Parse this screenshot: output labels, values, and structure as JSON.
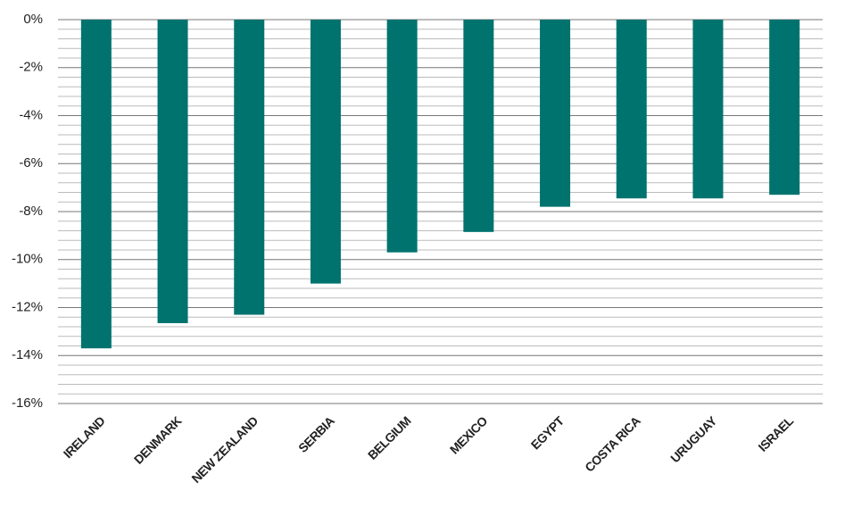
{
  "chart_data": {
    "type": "bar",
    "categories": [
      "IRELAND",
      "DENMARK",
      "NEW ZEALAND",
      "SERBIA",
      "BELGIUM",
      "MEXICO",
      "EGYPT",
      "COSTA RICA",
      "URUGUAY",
      "ISRAEL"
    ],
    "values": [
      -13.7,
      -12.65,
      -12.3,
      -11.0,
      -9.7,
      -8.85,
      -7.8,
      -7.45,
      -7.45,
      -7.3
    ],
    "color": "#00736f",
    "ylim": [
      -16,
      0
    ],
    "yticks": [
      {
        "value": 0,
        "label": "0%"
      },
      {
        "value": -2,
        "label": "-2%"
      },
      {
        "value": -4,
        "label": "-4%"
      },
      {
        "value": -6,
        "label": "-6%"
      },
      {
        "value": -8,
        "label": "-8%"
      },
      {
        "value": -10,
        "label": "-10%"
      },
      {
        "value": -12,
        "label": "-12%"
      },
      {
        "value": -14,
        "label": "-14%"
      },
      {
        "value": -16,
        "label": "-16%"
      }
    ],
    "grid": true,
    "minor_grid_divisions": 5
  }
}
